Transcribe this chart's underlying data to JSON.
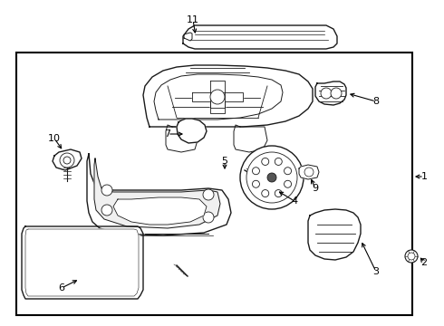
{
  "bg_color": "#ffffff",
  "border_color": "#000000",
  "line_color": "#1a1a1a",
  "text_color": "#000000",
  "fig_width": 4.9,
  "fig_height": 3.6,
  "dpi": 100
}
